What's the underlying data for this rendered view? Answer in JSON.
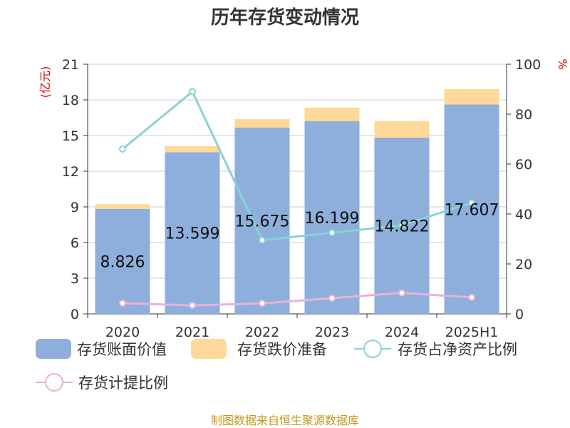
{
  "title": "历年存货变动情况",
  "source": "制图数据来自恒生聚源数据库",
  "colors": {
    "book_value": "#8eaedb",
    "impairment": "#ffd899",
    "ratio_net_assets": "#87d3d6",
    "provision_ratio": "#e6b3d9",
    "unit_label": "#cc0000",
    "source_text": "#c8961e"
  },
  "chart_data": {
    "type": "bar",
    "title": "历年存货变动情况",
    "categories": [
      "2020",
      "2021",
      "2022",
      "2023",
      "2024",
      "2025H1"
    ],
    "y_left": {
      "unit": "(亿元)",
      "ylim": [
        0,
        21
      ],
      "ticks": [
        0,
        3,
        6,
        9,
        12,
        15,
        18,
        21
      ]
    },
    "y_right": {
      "unit": "%",
      "ylim": [
        0,
        100
      ],
      "ticks": [
        0,
        20,
        40,
        60,
        80,
        100
      ]
    },
    "grid": true,
    "legend_position": "bottom",
    "series": [
      {
        "name": "存货账面价值",
        "type": "bar",
        "stack": "inventory",
        "axis": "left",
        "values": [
          8.826,
          13.599,
          15.675,
          16.199,
          14.822,
          17.607
        ],
        "labels": [
          "8.826",
          "13.599",
          "15.675",
          "16.199",
          "14.822",
          "17.607"
        ]
      },
      {
        "name": "存货跌价准备",
        "type": "bar",
        "stack": "inventory",
        "axis": "left",
        "values": [
          0.4,
          0.5,
          0.7,
          1.15,
          1.4,
          1.3
        ]
      },
      {
        "name": "存货占净资产比例",
        "type": "line",
        "axis": "right",
        "values": [
          66,
          89,
          29.5,
          32.5,
          35.5,
          44.5
        ]
      },
      {
        "name": "存货计提比例",
        "type": "line",
        "axis": "right",
        "values": [
          4.3,
          3.4,
          4.2,
          6.3,
          8.4,
          6.6
        ]
      }
    ]
  }
}
